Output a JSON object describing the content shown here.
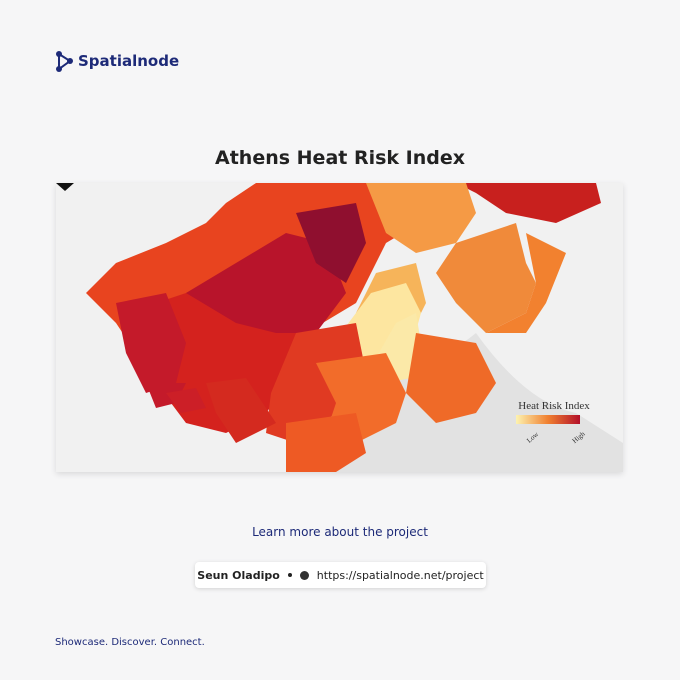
{
  "brand": "Spatialnode",
  "title": "Athens Heat Risk Index",
  "map": {
    "legend_title": "Heat Risk Index",
    "legend_low": "Low",
    "legend_high": "High"
  },
  "link": "Learn more about the project",
  "credit": {
    "author": "Seun Oladipo",
    "url": "https://spatialnode.net/project"
  },
  "tagline": "Showcase. Discover. Connect."
}
